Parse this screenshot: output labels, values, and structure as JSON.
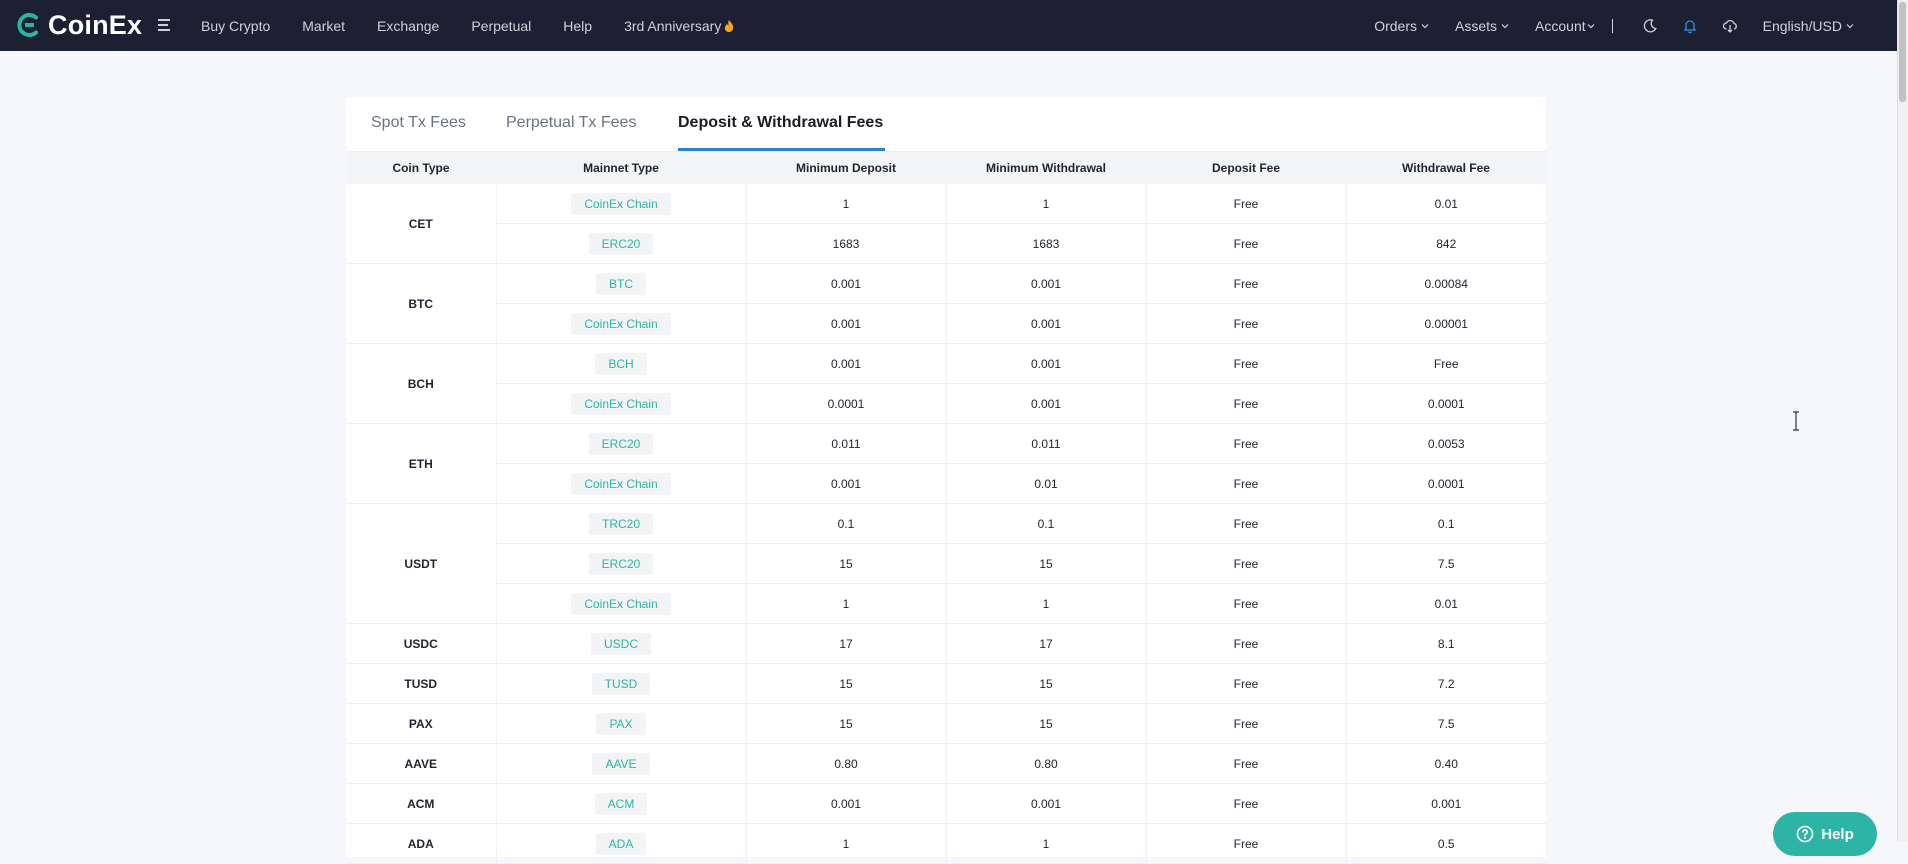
{
  "brand": {
    "name": "CoinEx",
    "accent": "#2eb3a7"
  },
  "nav": {
    "left": [
      "Buy Crypto",
      "Market",
      "Exchange",
      "Perpetual",
      "Help",
      "3rd Anniversary"
    ],
    "orders": "Orders",
    "assets": "Assets",
    "account": "Account",
    "language": "English/USD"
  },
  "tabs": [
    "Spot Tx Fees",
    "Perpetual Tx Fees",
    "Deposit & Withdrawal Fees"
  ],
  "active_tab": "Deposit & Withdrawal Fees",
  "table": {
    "headers": [
      "Coin Type",
      "Mainnet Type",
      "Minimum Deposit",
      "Minimum Withdrawal",
      "Deposit Fee",
      "Withdrawal Fee"
    ],
    "groups": [
      {
        "coin": "CET",
        "rows": [
          {
            "mainnet": "CoinEx Chain",
            "min_deposit": "1",
            "min_withdrawal": "1",
            "deposit_fee": "Free",
            "withdrawal_fee": "0.01"
          },
          {
            "mainnet": "ERC20",
            "min_deposit": "1683",
            "min_withdrawal": "1683",
            "deposit_fee": "Free",
            "withdrawal_fee": "842"
          }
        ]
      },
      {
        "coin": "BTC",
        "rows": [
          {
            "mainnet": "BTC",
            "min_deposit": "0.001",
            "min_withdrawal": "0.001",
            "deposit_fee": "Free",
            "withdrawal_fee": "0.00084"
          },
          {
            "mainnet": "CoinEx Chain",
            "min_deposit": "0.001",
            "min_withdrawal": "0.001",
            "deposit_fee": "Free",
            "withdrawal_fee": "0.00001"
          }
        ]
      },
      {
        "coin": "BCH",
        "rows": [
          {
            "mainnet": "BCH",
            "min_deposit": "0.001",
            "min_withdrawal": "0.001",
            "deposit_fee": "Free",
            "withdrawal_fee": "Free"
          },
          {
            "mainnet": "CoinEx Chain",
            "min_deposit": "0.0001",
            "min_withdrawal": "0.001",
            "deposit_fee": "Free",
            "withdrawal_fee": "0.0001"
          }
        ]
      },
      {
        "coin": "ETH",
        "rows": [
          {
            "mainnet": "ERC20",
            "min_deposit": "0.011",
            "min_withdrawal": "0.011",
            "deposit_fee": "Free",
            "withdrawal_fee": "0.0053"
          },
          {
            "mainnet": "CoinEx Chain",
            "min_deposit": "0.001",
            "min_withdrawal": "0.01",
            "deposit_fee": "Free",
            "withdrawal_fee": "0.0001"
          }
        ]
      },
      {
        "coin": "USDT",
        "rows": [
          {
            "mainnet": "TRC20",
            "min_deposit": "0.1",
            "min_withdrawal": "0.1",
            "deposit_fee": "Free",
            "withdrawal_fee": "0.1"
          },
          {
            "mainnet": "ERC20",
            "min_deposit": "15",
            "min_withdrawal": "15",
            "deposit_fee": "Free",
            "withdrawal_fee": "7.5"
          },
          {
            "mainnet": "CoinEx Chain",
            "min_deposit": "1",
            "min_withdrawal": "1",
            "deposit_fee": "Free",
            "withdrawal_fee": "0.01"
          }
        ]
      },
      {
        "coin": "USDC",
        "rows": [
          {
            "mainnet": "USDC",
            "min_deposit": "17",
            "min_withdrawal": "17",
            "deposit_fee": "Free",
            "withdrawal_fee": "8.1"
          }
        ]
      },
      {
        "coin": "TUSD",
        "rows": [
          {
            "mainnet": "TUSD",
            "min_deposit": "15",
            "min_withdrawal": "15",
            "deposit_fee": "Free",
            "withdrawal_fee": "7.2"
          }
        ]
      },
      {
        "coin": "PAX",
        "rows": [
          {
            "mainnet": "PAX",
            "min_deposit": "15",
            "min_withdrawal": "15",
            "deposit_fee": "Free",
            "withdrawal_fee": "7.5"
          }
        ]
      },
      {
        "coin": "AAVE",
        "rows": [
          {
            "mainnet": "AAVE",
            "min_deposit": "0.80",
            "min_withdrawal": "0.80",
            "deposit_fee": "Free",
            "withdrawal_fee": "0.40"
          }
        ]
      },
      {
        "coin": "ACM",
        "rows": [
          {
            "mainnet": "ACM",
            "min_deposit": "0.001",
            "min_withdrawal": "0.001",
            "deposit_fee": "Free",
            "withdrawal_fee": "0.001"
          }
        ]
      },
      {
        "coin": "ADA",
        "rows": [
          {
            "mainnet": "ADA",
            "min_deposit": "1",
            "min_withdrawal": "1",
            "deposit_fee": "Free",
            "withdrawal_fee": "0.5"
          }
        ]
      }
    ]
  },
  "help_button": "Help"
}
